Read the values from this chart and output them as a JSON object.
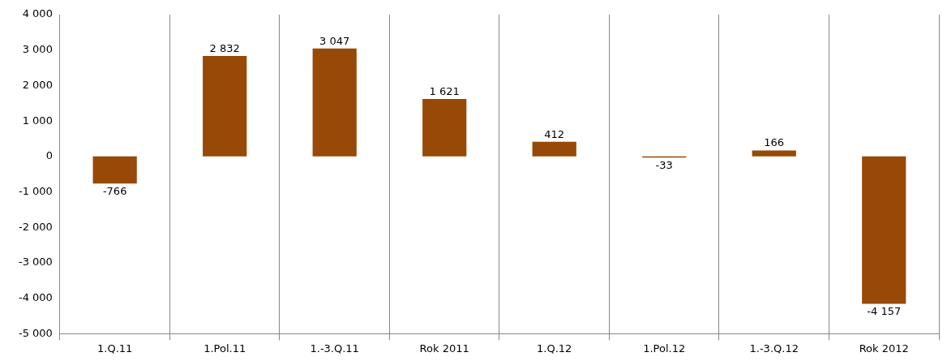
{
  "chart_data": {
    "type": "bar",
    "categories": [
      "1.Q.11",
      "1.Pol.11",
      "1.-3.Q.11",
      "Rok 2011",
      "1.Q.12",
      "1.Pol.12",
      "1.-3.Q.12",
      "Rok 2012"
    ],
    "values": [
      -766,
      2832,
      3047,
      1621,
      412,
      -33,
      166,
      -4157
    ],
    "value_labels": [
      "-766",
      "2 832",
      "3 047",
      "1 621",
      "412",
      "-33",
      "166",
      "-4 157"
    ],
    "color": "#984807",
    "ylim": [
      -5000,
      4000
    ],
    "yticks": [
      {
        "value": -5000,
        "label": "-5 000"
      },
      {
        "value": -4000,
        "label": "-4 000"
      },
      {
        "value": -3000,
        "label": "-3 000"
      },
      {
        "value": -2000,
        "label": "-2 000"
      },
      {
        "value": -1000,
        "label": "-1 000"
      },
      0,
      {
        "value": 1000,
        "label": "1 000"
      },
      {
        "value": 2000,
        "label": "2 000"
      },
      {
        "value": 3000,
        "label": "3 000"
      },
      {
        "value": 4000,
        "label": "4 000"
      }
    ],
    "grid": "x",
    "legend": false
  }
}
